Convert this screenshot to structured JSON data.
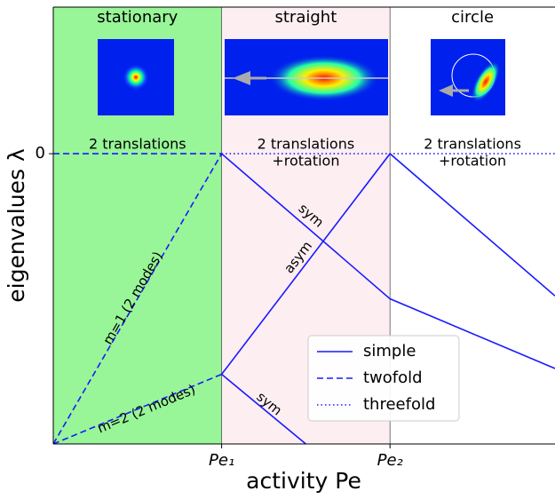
{
  "chart_data": {
    "type": "line",
    "xlabel": "activity Pe",
    "ylabel": "eigenvalues λ",
    "xlim": [
      0,
      2.98
    ],
    "ylim": [
      -1,
      0.505
    ],
    "xticks": [
      {
        "value": 1,
        "label": "Pe₁"
      },
      {
        "value": 2,
        "label": "Pe₂"
      }
    ],
    "yticks": [
      0
    ],
    "regions": [
      {
        "label": "stationary",
        "color": "#98f598",
        "from": 0,
        "to": 1,
        "note": [
          "2 translations"
        ]
      },
      {
        "label": "straight",
        "color": "#fdeef2",
        "from": 1,
        "to": 2,
        "note": [
          "2 translations",
          "+rotation"
        ]
      },
      {
        "label": "circle",
        "color": "#ffffff",
        "from": 2,
        "to": 2.98,
        "note": [
          "2 translations",
          "+rotation"
        ]
      }
    ],
    "series": [
      {
        "name": "simple",
        "color": "#1a1aff",
        "style": "solid",
        "x": [
          1,
          2,
          2.98,
          2.98,
          1,
          2,
          2.98,
          2.98,
          1,
          1.5
        ],
        "values": [
          0,
          -0.5,
          -0.74,
          null,
          -0.76,
          0,
          -0.49,
          null,
          -0.76,
          -1
        ]
      },
      {
        "name": "twofold",
        "color": "#1a1aff",
        "style": "dashed",
        "x": [
          0,
          1,
          1,
          0,
          1,
          1,
          0,
          1
        ],
        "values": [
          0,
          0,
          null,
          -1,
          0,
          null,
          -1,
          -0.76
        ]
      },
      {
        "name": "threefold",
        "color": "#1a1aff",
        "style": "dotted",
        "x": [
          1,
          2.98
        ],
        "values": [
          0,
          0
        ]
      }
    ],
    "annotations": [
      "m=1 (2 modes)",
      "m=2 (2 modes)",
      "sym",
      "asym",
      "sym"
    ],
    "legend": "lower right"
  }
}
